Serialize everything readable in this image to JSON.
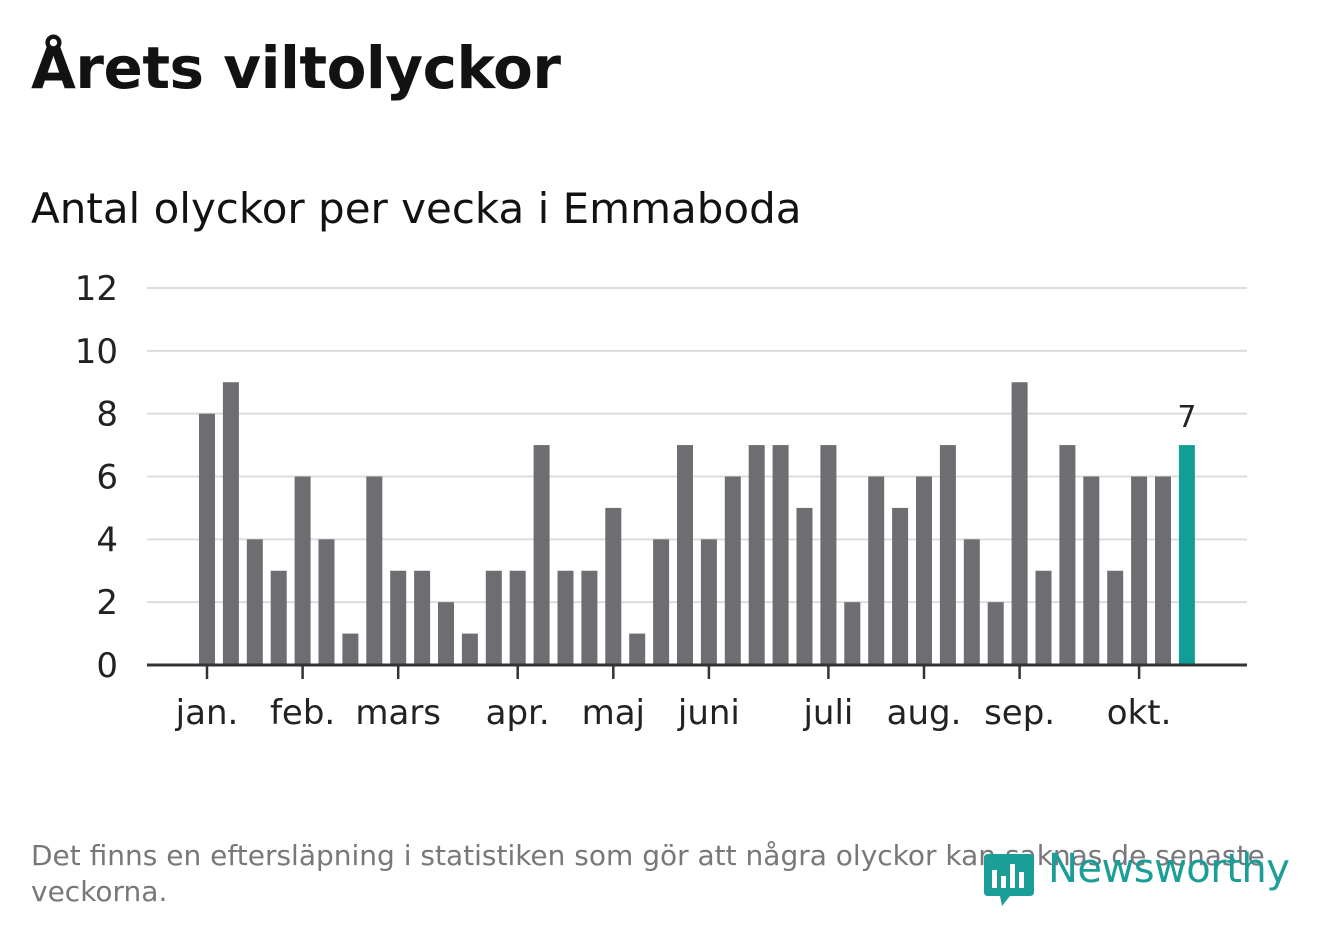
{
  "title": "Årets viltolyckor",
  "subtitle": "Antal olyckor per vecka i Emmaboda",
  "footnote": "Det finns en eftersläpning i statistiken som gör att några olyckor kan saknas de senaste veckorna.",
  "logo_text": "Newsworthy",
  "colors": {
    "bar": "#6d6d72",
    "highlight": "#109e96",
    "grid": "#dcdcdc",
    "axis": "#333333",
    "logo": "#1c9e98"
  },
  "icons": {
    "logo": "newsworthy-logo-icon"
  },
  "chart_data": {
    "type": "bar",
    "values": [
      8,
      9,
      4,
      3,
      6,
      4,
      1,
      6,
      3,
      3,
      2,
      1,
      3,
      3,
      7,
      3,
      3,
      5,
      1,
      4,
      7,
      4,
      6,
      7,
      7,
      5,
      7,
      2,
      6,
      5,
      6,
      7,
      4,
      2,
      9,
      3,
      7,
      6,
      3,
      6,
      6,
      7
    ],
    "highlight_index": 41,
    "highlight_label": "7",
    "ylim": [
      0,
      12
    ],
    "yticks": [
      0,
      2,
      4,
      6,
      8,
      10,
      12
    ],
    "month_labels": [
      {
        "label": "jan.",
        "bar": 0
      },
      {
        "label": "feb.",
        "bar": 4
      },
      {
        "label": "mars",
        "bar": 8
      },
      {
        "label": "apr.",
        "bar": 13
      },
      {
        "label": "maj",
        "bar": 17
      },
      {
        "label": "juni",
        "bar": 21
      },
      {
        "label": "juli",
        "bar": 26
      },
      {
        "label": "aug.",
        "bar": 30
      },
      {
        "label": "sep.",
        "bar": 34
      },
      {
        "label": "okt.",
        "bar": 39
      }
    ],
    "grid": true,
    "xlabel": "",
    "ylabel": ""
  }
}
